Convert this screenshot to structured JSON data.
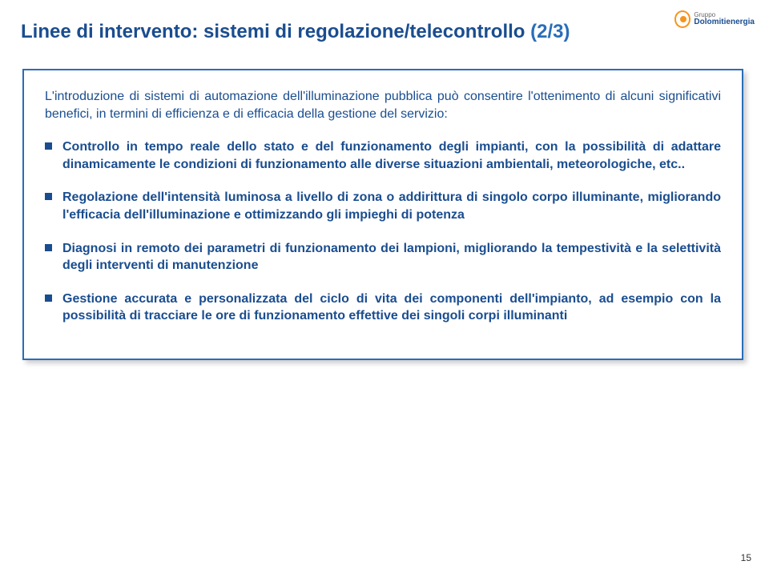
{
  "logo": {
    "line1": "Gruppo",
    "line2": "Dolomitienergia"
  },
  "title": {
    "main": "Linee di intervento: sistemi di regolazione/telecontrollo ",
    "fraction": "(2/3)"
  },
  "intro": "L'introduzione di sistemi di automazione dell'illuminazione pubblica può consentire l'ottenimento di alcuni significativi benefici, in termini di efficienza e di efficacia della gestione del servizio:",
  "bullets": [
    "Controllo in tempo reale dello stato e del funzionamento degli impianti, con la possibilità di adattare dinamicamente le condizioni di funzionamento alle diverse situazioni ambientali, meteorologiche, etc..",
    "Regolazione dell'intensità luminosa a livello di zona o addirittura di singolo corpo illuminante, migliorando l'efficacia dell'illuminazione e ottimizzando gli impieghi di potenza",
    "Diagnosi in remoto dei parametri di funzionamento dei lampioni, migliorando la tempestività e la selettività degli interventi di manutenzione",
    "Gestione accurata e personalizzata del ciclo di vita dei componenti dell'impianto, ad esempio con la possibilità di tracciare le ore di funzionamento effettive dei singoli corpi illuminanti"
  ],
  "pageNumber": "15",
  "colors": {
    "titleColor": "#1a4d8f",
    "boxBorder": "#2a6db8",
    "logoAccent": "#f7941d"
  }
}
